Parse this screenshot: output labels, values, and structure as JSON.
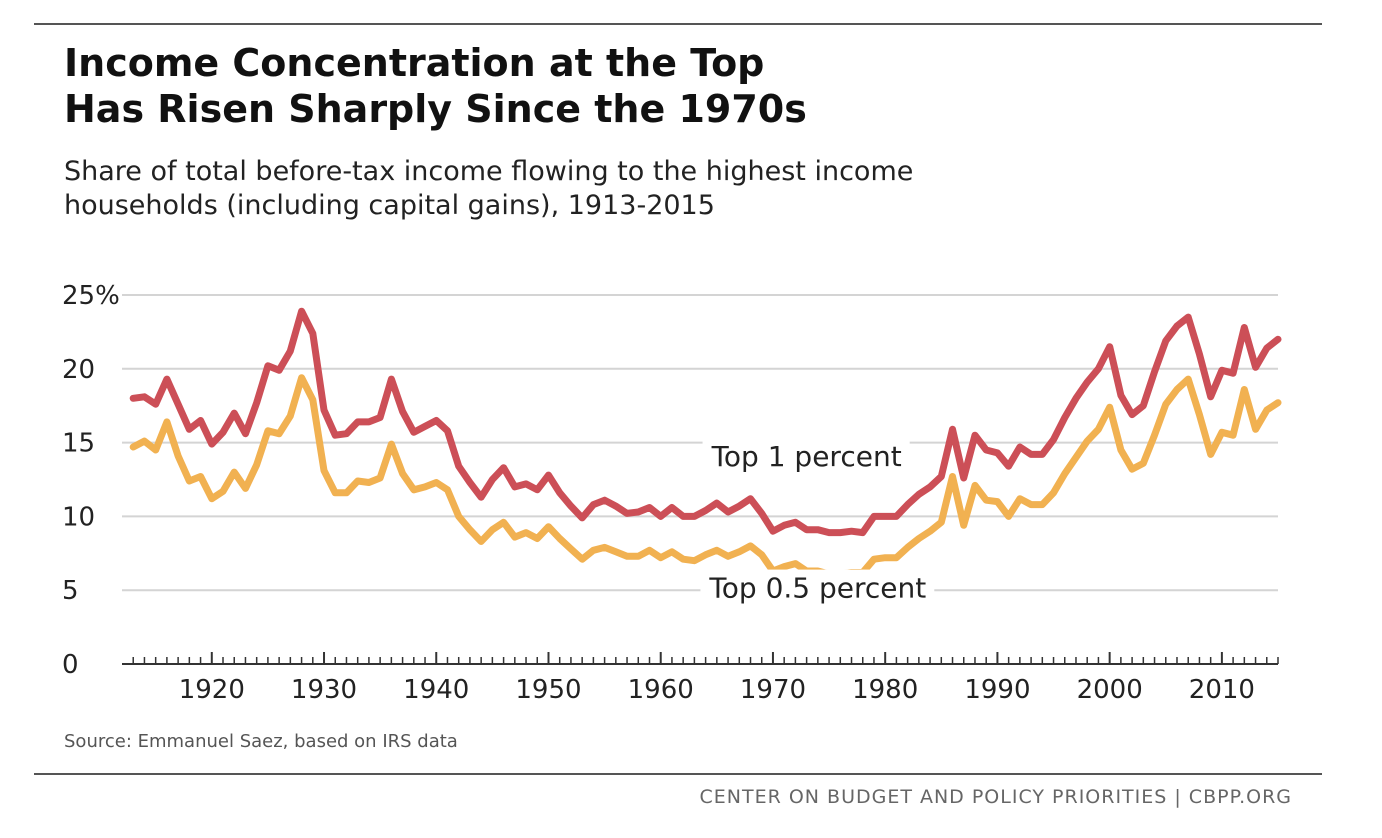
{
  "header": {
    "title_line1": "Income Concentration at the Top",
    "title_line2": "Has Risen Sharply Since the 1970s",
    "subtitle_line1": "Share of total before-tax income flowing to the highest income",
    "subtitle_line2": "households (including capital gains), 1913-2015"
  },
  "footer": {
    "source": "Source: Emmanuel Saez, based on IRS data",
    "credit": "CENTER ON BUDGET AND POLICY PRIORITIES | CBPP.ORG"
  },
  "colors": {
    "top1": "#cc4f57",
    "top05": "#f1b151",
    "grid": "#d4d4d4",
    "axis": "#333333"
  },
  "chart_data": {
    "type": "line",
    "title": "Income Concentration at the Top Has Risen Sharply Since the 1970s",
    "subtitle": "Share of total before-tax income flowing to the highest income households (including capital gains), 1913-2015",
    "xlabel": "",
    "ylabel": "",
    "xlim": [
      1912,
      2015
    ],
    "ylim": [
      0,
      25
    ],
    "y_ticks": [
      0,
      5,
      10,
      15,
      20,
      25
    ],
    "y_tick_labels": [
      "0",
      "5",
      "10",
      "15",
      "20",
      "25%"
    ],
    "x_ticks": [
      1920,
      1930,
      1940,
      1950,
      1960,
      1970,
      1980,
      1990,
      2000,
      2010
    ],
    "x_tick_labels": [
      "1920",
      "1930",
      "1940",
      "1950",
      "1960",
      "1970",
      "1980",
      "1990",
      "2000",
      "2010"
    ],
    "grid": true,
    "legend": "inline labels",
    "x": [
      1913,
      1914,
      1915,
      1916,
      1917,
      1918,
      1919,
      1920,
      1921,
      1922,
      1923,
      1924,
      1925,
      1926,
      1927,
      1928,
      1929,
      1930,
      1931,
      1932,
      1933,
      1934,
      1935,
      1936,
      1937,
      1938,
      1939,
      1940,
      1941,
      1942,
      1943,
      1944,
      1945,
      1946,
      1947,
      1948,
      1949,
      1950,
      1951,
      1952,
      1953,
      1954,
      1955,
      1956,
      1957,
      1958,
      1959,
      1960,
      1961,
      1962,
      1963,
      1964,
      1965,
      1966,
      1967,
      1968,
      1969,
      1970,
      1971,
      1972,
      1973,
      1974,
      1975,
      1976,
      1977,
      1978,
      1979,
      1980,
      1981,
      1982,
      1983,
      1984,
      1985,
      1986,
      1987,
      1988,
      1989,
      1990,
      1991,
      1992,
      1993,
      1994,
      1995,
      1996,
      1997,
      1998,
      1999,
      2000,
      2001,
      2002,
      2003,
      2004,
      2005,
      2006,
      2007,
      2008,
      2009,
      2010,
      2011,
      2012,
      2013,
      2014,
      2015
    ],
    "series": [
      {
        "name": "Top 1 percent",
        "values": [
          18.0,
          18.1,
          17.6,
          19.3,
          17.6,
          15.9,
          16.5,
          14.9,
          15.7,
          17.0,
          15.6,
          17.7,
          20.2,
          19.9,
          21.2,
          23.9,
          22.4,
          17.2,
          15.5,
          15.6,
          16.4,
          16.4,
          16.7,
          19.3,
          17.1,
          15.7,
          16.1,
          16.5,
          15.8,
          13.4,
          12.3,
          11.3,
          12.5,
          13.3,
          12.0,
          12.2,
          11.8,
          12.8,
          11.6,
          10.7,
          9.9,
          10.8,
          11.1,
          10.7,
          10.2,
          10.3,
          10.6,
          10.0,
          10.6,
          10.0,
          10.0,
          10.4,
          10.9,
          10.3,
          10.7,
          11.2,
          10.2,
          9.0,
          9.4,
          9.6,
          9.1,
          9.1,
          8.9,
          8.9,
          9.0,
          8.9,
          10.0,
          10.0,
          10.0,
          10.8,
          11.5,
          12.0,
          12.7,
          15.9,
          12.6,
          15.5,
          14.5,
          14.3,
          13.4,
          14.7,
          14.2,
          14.2,
          15.2,
          16.7,
          18.0,
          19.1,
          20.0,
          21.5,
          18.2,
          16.9,
          17.5,
          19.8,
          21.9,
          22.9,
          23.5,
          21.0,
          18.1,
          19.9,
          19.7,
          22.8,
          20.1,
          21.4,
          22.0
        ]
      },
      {
        "name": "Top 0.5 percent",
        "values": [
          14.7,
          15.1,
          14.5,
          16.4,
          14.1,
          12.4,
          12.7,
          11.2,
          11.7,
          13.0,
          11.9,
          13.5,
          15.8,
          15.6,
          16.8,
          19.4,
          17.9,
          13.1,
          11.6,
          11.6,
          12.4,
          12.3,
          12.6,
          14.9,
          12.9,
          11.8,
          12.0,
          12.3,
          11.8,
          10.0,
          9.1,
          8.3,
          9.1,
          9.6,
          8.6,
          8.9,
          8.5,
          9.3,
          8.5,
          7.8,
          7.1,
          7.7,
          7.9,
          7.6,
          7.3,
          7.3,
          7.7,
          7.2,
          7.6,
          7.1,
          7.0,
          7.4,
          7.7,
          7.3,
          7.6,
          8.0,
          7.4,
          6.3,
          6.6,
          6.8,
          6.3,
          6.3,
          6.1,
          6.1,
          6.2,
          6.2,
          7.1,
          7.2,
          7.2,
          7.9,
          8.5,
          9.0,
          9.6,
          12.7,
          9.4,
          12.1,
          11.1,
          11.0,
          10.0,
          11.2,
          10.8,
          10.8,
          11.6,
          12.9,
          14.0,
          15.1,
          15.9,
          17.4,
          14.5,
          13.2,
          13.6,
          15.5,
          17.6,
          18.6,
          19.3,
          16.9,
          14.2,
          15.7,
          15.5,
          18.6,
          15.9,
          17.2,
          17.7
        ]
      }
    ],
    "annotations": [
      {
        "text": "Top 1 percent",
        "x": 1973,
        "y": 13.4
      },
      {
        "text": "Top 0.5 percent",
        "x": 1974,
        "y": 4.5
      }
    ]
  }
}
